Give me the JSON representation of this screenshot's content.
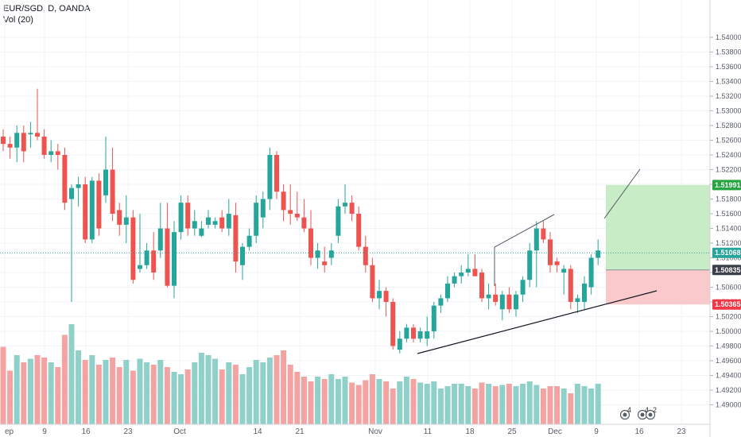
{
  "header": {
    "symbol_line": "EUR/SGD, D, OANDA",
    "indicator_line": "Vol (20)"
  },
  "colors": {
    "up": "#26a69a",
    "down": "#ef5350",
    "vol_up": "#8fd0c8",
    "vol_down": "#f4a3a3",
    "target_zone": "#c8ecc5",
    "stop_zone": "#f9c9cb",
    "target_badge": "#26a541",
    "stop_badge": "#f23645",
    "entry_badge": "#3b3f4a",
    "price_badge": "#26a69a",
    "grid": "#f0f3fa"
  },
  "chart_data": {
    "type": "candlestick",
    "title": "EUR/SGD, D, OANDA",
    "indicator": "Vol (20)",
    "ylim": [
      1.488,
      1.544
    ],
    "y_ticks": [
      "1.54000",
      "1.53800",
      "1.53600",
      "1.53400",
      "1.53200",
      "1.53000",
      "1.52800",
      "1.52600",
      "1.52400",
      "1.52200",
      "1.52000",
      "1.51800",
      "1.51600",
      "1.51400",
      "1.51200",
      "1.51000",
      "1.50800",
      "1.50600",
      "1.50400",
      "1.50200",
      "1.50000",
      "1.49800",
      "1.49600",
      "1.49400",
      "1.49200",
      "1.49000"
    ],
    "x_tick_labels": [
      "ep",
      "9",
      "16",
      "23",
      "Oct",
      "14",
      "21",
      "Nov",
      "11",
      "18",
      "25",
      "Dec",
      "9",
      "16",
      "23"
    ],
    "candles": [
      [
        1.5265,
        1.5275,
        1.5245,
        1.5255
      ],
      [
        1.5255,
        1.5265,
        1.5235,
        1.525
      ],
      [
        1.525,
        1.528,
        1.523,
        1.527
      ],
      [
        1.527,
        1.528,
        1.523,
        1.5245
      ],
      [
        1.5268,
        1.5285,
        1.525,
        1.527
      ],
      [
        1.527,
        1.533,
        1.526,
        1.5265
      ],
      [
        1.5265,
        1.5275,
        1.5235,
        1.524
      ],
      [
        1.524,
        1.526,
        1.523,
        1.5245
      ],
      [
        1.5245,
        1.5255,
        1.522,
        1.524
      ],
      [
        1.524,
        1.525,
        1.5165,
        1.5175
      ],
      [
        1.518,
        1.52,
        1.504,
        1.5195
      ],
      [
        1.5195,
        1.521,
        1.517,
        1.52
      ],
      [
        1.52,
        1.521,
        1.512,
        1.5125
      ],
      [
        1.5125,
        1.521,
        1.512,
        1.5205
      ],
      [
        1.5205,
        1.5215,
        1.513,
        1.514
      ],
      [
        1.5185,
        1.5265,
        1.5175,
        1.522
      ],
      [
        1.522,
        1.525,
        1.515,
        1.516
      ],
      [
        1.5165,
        1.5175,
        1.513,
        1.5145
      ],
      [
        1.5145,
        1.5185,
        1.512,
        1.5155
      ],
      [
        1.5155,
        1.5165,
        1.5065,
        1.507
      ],
      [
        1.5085,
        1.516,
        1.508,
        1.509
      ],
      [
        1.509,
        1.512,
        1.5085,
        1.511
      ],
      [
        1.511,
        1.5135,
        1.507,
        1.508
      ],
      [
        1.511,
        1.5175,
        1.51,
        1.514
      ],
      [
        1.514,
        1.5175,
        1.506,
        1.5062
      ],
      [
        1.5062,
        1.515,
        1.5045,
        1.5135
      ],
      [
        1.5135,
        1.5185,
        1.5125,
        1.5175
      ],
      [
        1.5175,
        1.5185,
        1.513,
        1.514
      ],
      [
        1.514,
        1.5165,
        1.513,
        1.515
      ],
      [
        1.513,
        1.515,
        1.5128,
        1.514
      ],
      [
        1.5145,
        1.5165,
        1.514,
        1.5155
      ],
      [
        1.5145,
        1.5155,
        1.514,
        1.515
      ],
      [
        1.5155,
        1.5165,
        1.5135,
        1.514
      ],
      [
        1.514,
        1.518,
        1.513,
        1.516
      ],
      [
        1.5158,
        1.5175,
        1.508,
        1.5095
      ],
      [
        1.509,
        1.512,
        1.507,
        1.5115
      ],
      [
        1.5115,
        1.514,
        1.511,
        1.513
      ],
      [
        1.513,
        1.5185,
        1.512,
        1.5175
      ],
      [
        1.5155,
        1.519,
        1.514,
        1.518
      ],
      [
        1.518,
        1.525,
        1.5165,
        1.524
      ],
      [
        1.524,
        1.5245,
        1.518,
        1.519
      ],
      [
        1.519,
        1.52,
        1.515,
        1.5165
      ],
      [
        1.5165,
        1.52,
        1.5145,
        1.516
      ],
      [
        1.516,
        1.519,
        1.515,
        1.5155
      ],
      [
        1.5155,
        1.518,
        1.5135,
        1.514
      ],
      [
        1.514,
        1.5165,
        1.509,
        1.51
      ],
      [
        1.51,
        1.512,
        1.5085,
        1.511
      ],
      [
        1.5095,
        1.5115,
        1.508,
        1.509
      ],
      [
        1.51,
        1.512,
        1.509,
        1.511
      ],
      [
        1.513,
        1.518,
        1.512,
        1.517
      ],
      [
        1.517,
        1.52,
        1.516,
        1.5175
      ],
      [
        1.5175,
        1.5185,
        1.515,
        1.516
      ],
      [
        1.516,
        1.517,
        1.511,
        1.5115
      ],
      [
        1.5115,
        1.513,
        1.508,
        1.509
      ],
      [
        1.509,
        1.51,
        1.504,
        1.5045
      ],
      [
        1.5045,
        1.507,
        1.503,
        1.5055
      ],
      [
        1.5055,
        1.506,
        1.502,
        1.504
      ],
      [
        1.504,
        1.5045,
        1.4975,
        1.498
      ],
      [
        1.4975,
        1.5,
        1.497,
        1.499
      ],
      [
        1.499,
        1.501,
        1.4985,
        1.5005
      ],
      [
        1.5005,
        1.501,
        1.4985,
        1.499
      ],
      [
        1.499,
        1.5005,
        1.4985,
        1.5
      ],
      [
        1.499,
        1.502,
        1.498,
        1.5
      ],
      [
        1.5,
        1.504,
        1.499,
        1.5035
      ],
      [
        1.5035,
        1.505,
        1.5025,
        1.5045
      ],
      [
        1.5045,
        1.5075,
        1.504,
        1.5065
      ],
      [
        1.5065,
        1.508,
        1.506,
        1.5075
      ],
      [
        1.5075,
        1.509,
        1.5065,
        1.508
      ],
      [
        1.508,
        1.5105,
        1.5075,
        1.5085
      ],
      [
        1.5085,
        1.5105,
        1.508,
        1.5075
      ],
      [
        1.508,
        1.5085,
        1.504,
        1.5045
      ],
      [
        1.5045,
        1.5065,
        1.503,
        1.505
      ],
      [
        1.505,
        1.5065,
        1.5035,
        1.504
      ],
      [
        1.503,
        1.5055,
        1.5015,
        1.505
      ],
      [
        1.505,
        1.506,
        1.5025,
        1.503
      ],
      [
        1.503,
        1.5055,
        1.502,
        1.505
      ],
      [
        1.505,
        1.5075,
        1.504,
        1.507
      ],
      [
        1.507,
        1.512,
        1.506,
        1.511
      ],
      [
        1.511,
        1.515,
        1.506,
        1.514
      ],
      [
        1.514,
        1.515,
        1.512,
        1.5125
      ],
      [
        1.5125,
        1.5135,
        1.508,
        1.509
      ],
      [
        1.5095,
        1.51,
        1.508,
        1.509
      ],
      [
        1.508,
        1.509,
        1.505,
        1.5085
      ],
      [
        1.5085,
        1.509,
        1.503,
        1.504
      ],
      [
        1.504,
        1.505,
        1.5025,
        1.5045
      ],
      [
        1.504,
        1.5075,
        1.503,
        1.5065
      ],
      [
        1.506,
        1.5105,
        1.505,
        1.51
      ],
      [
        1.51,
        1.5125,
        1.509,
        1.511
      ]
    ],
    "volumes": [
      65,
      45,
      58,
      52,
      55,
      58,
      56,
      52,
      48,
      75,
      84,
      62,
      54,
      58,
      50,
      54,
      56,
      48,
      54,
      45,
      55,
      52,
      50,
      54,
      48,
      44,
      42,
      46,
      52,
      60,
      58,
      55,
      46,
      52,
      50,
      42,
      48,
      54,
      52,
      56,
      58,
      62,
      50,
      44,
      40,
      36,
      40,
      38,
      42,
      38,
      40,
      35,
      33,
      37,
      42,
      38,
      36,
      30,
      36,
      40,
      38,
      35,
      34,
      36,
      30,
      32,
      34,
      34,
      32,
      30,
      35,
      34,
      32,
      33,
      34,
      32,
      34,
      36,
      33,
      30,
      32,
      32,
      30,
      26,
      34,
      32,
      30,
      34
    ]
  },
  "drawings": {
    "price_label_current": "1.51068",
    "price_label_target": "1.51991",
    "price_label_entry": "1.50835",
    "price_label_stop": "1.50365",
    "current_price": 1.51068,
    "target_price": 1.51991,
    "entry_price": 1.50835,
    "stop_price": 1.50365,
    "events": [
      "4",
      "4",
      "2"
    ]
  }
}
